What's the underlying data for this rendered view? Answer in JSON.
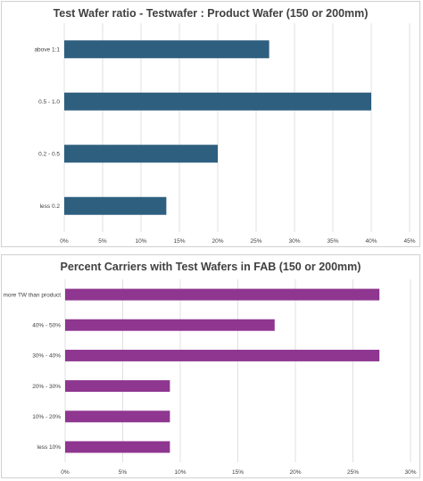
{
  "chart_data": [
    {
      "type": "bar",
      "orientation": "horizontal",
      "title": "Test Wafer ratio - Testwafer : Product Wafer (150 or 200mm)",
      "categories": [
        "above 1:1",
        "0.5 - 1.0",
        "0.2 - 0.5",
        "less 0.2"
      ],
      "values": [
        0.267,
        0.4,
        0.2,
        0.133
      ],
      "xlim": [
        0,
        0.45
      ],
      "ticks": [
        "0%",
        "5%",
        "10%",
        "15%",
        "20%",
        "25%",
        "30%",
        "35%",
        "40%",
        "45%"
      ],
      "grid": true,
      "color": "#2e5f7f"
    },
    {
      "type": "bar",
      "orientation": "horizontal",
      "title": "Percent Carriers with Test Wafers in FAB (150 or 200mm)",
      "categories": [
        "more TW than product",
        "40% - 50%",
        "30% - 40%",
        "20% - 30%",
        "10% - 20%",
        "less 10%"
      ],
      "values": [
        0.273,
        0.182,
        0.273,
        0.091,
        0.091,
        0.091
      ],
      "xlim": [
        0,
        0.3
      ],
      "ticks": [
        "0%",
        "5%",
        "10%",
        "15%",
        "20%",
        "25%",
        "30%"
      ],
      "grid": true,
      "color": "#8e3690"
    }
  ]
}
